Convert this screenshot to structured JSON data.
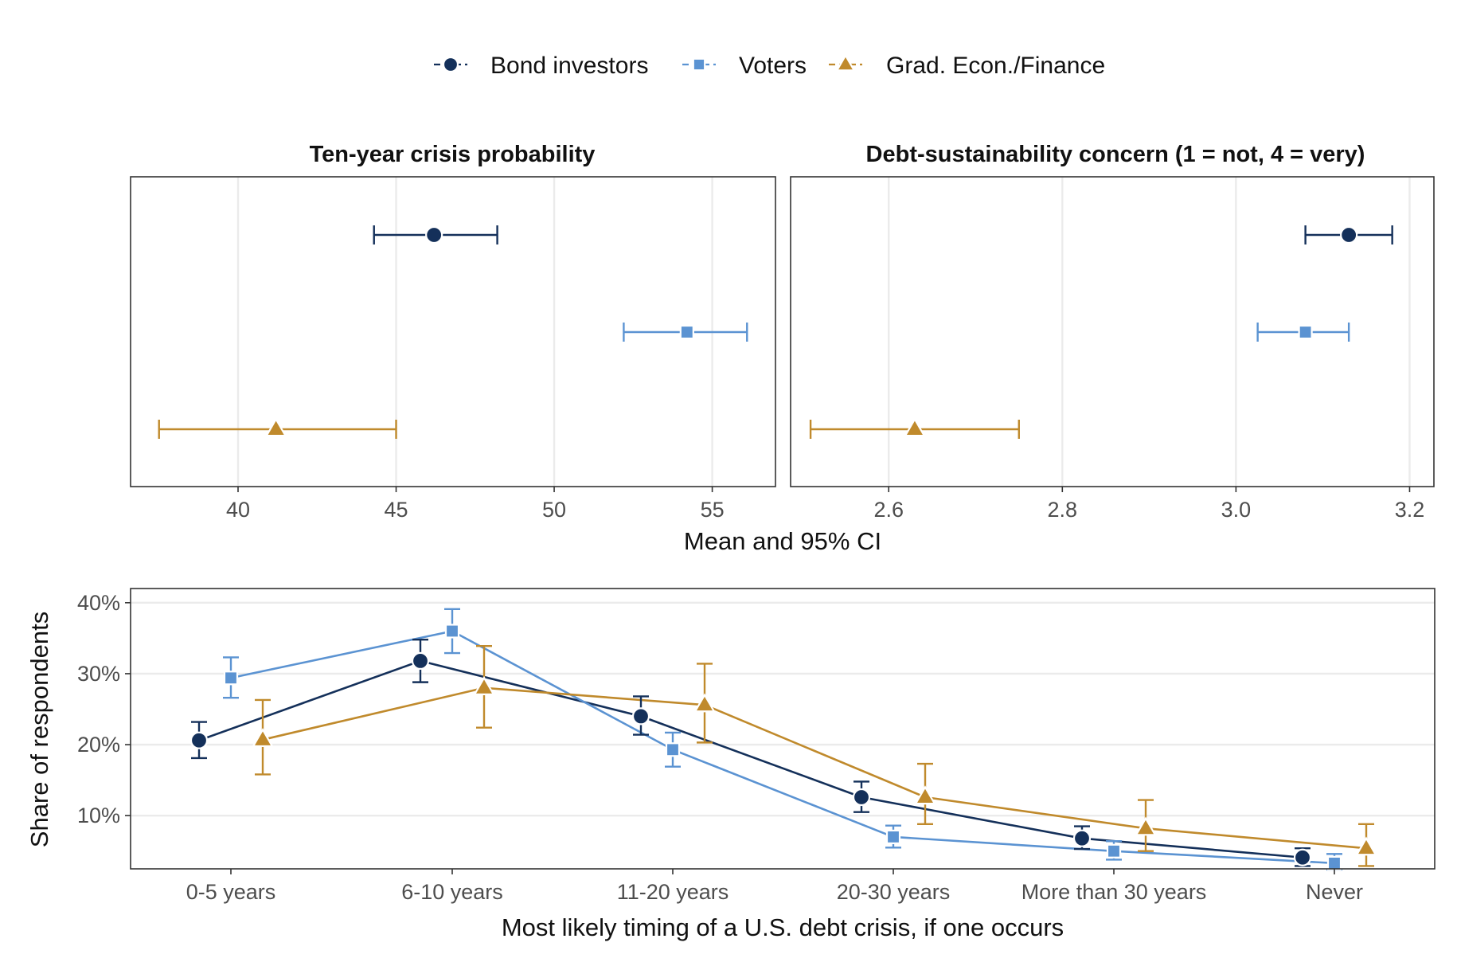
{
  "legend": {
    "items": [
      {
        "label": "Bond investors",
        "color": "#14305a",
        "marker": "circle"
      },
      {
        "label": "Voters",
        "color": "#5b93d2",
        "marker": "square"
      },
      {
        "label": "Grad. Econ./Finance",
        "color": "#c08a2c",
        "marker": "triangle"
      }
    ]
  },
  "shared_x_title": "Mean and 95% CI",
  "chart_data": [
    {
      "type": "scatter",
      "title": "Ten-year crisis probability",
      "xlabel": "Mean and 95% CI",
      "ylabel": "",
      "xlim": [
        36.6,
        57.0
      ],
      "x_ticks": [
        40,
        45,
        50,
        55
      ],
      "x_tick_labels": [
        "40",
        "45",
        "50",
        "55"
      ],
      "grid": "vertical",
      "series": [
        {
          "name": "Bond investors",
          "mean": 46.2,
          "lo": 44.3,
          "hi": 48.2
        },
        {
          "name": "Voters",
          "mean": 54.2,
          "lo": 52.2,
          "hi": 56.1
        },
        {
          "name": "Grad. Econ./Finance",
          "mean": 41.2,
          "lo": 37.5,
          "hi": 45.0
        }
      ]
    },
    {
      "type": "scatter",
      "title": "Debt-sustainability concern (1 = not, 4 = very)",
      "xlabel": "Mean and 95% CI",
      "ylabel": "",
      "xlim": [
        2.487,
        3.228
      ],
      "x_ticks": [
        2.6,
        2.8,
        3.0,
        3.2
      ],
      "x_tick_labels": [
        "2.6",
        "2.8",
        "3.0",
        "3.2"
      ],
      "grid": "vertical",
      "series": [
        {
          "name": "Bond investors",
          "mean": 3.13,
          "lo": 3.08,
          "hi": 3.18
        },
        {
          "name": "Voters",
          "mean": 3.08,
          "lo": 3.025,
          "hi": 3.13
        },
        {
          "name": "Grad. Econ./Finance",
          "mean": 2.63,
          "lo": 2.51,
          "hi": 2.75
        }
      ]
    },
    {
      "type": "line",
      "title": "",
      "xlabel": "Most likely timing of a U.S. debt crisis, if one occurs",
      "ylabel": "Share of respondents",
      "categories": [
        "0-5 years",
        "6-10 years",
        "11-20 years",
        "20-30 years",
        "More than 30 years",
        "Never"
      ],
      "ylim": [
        2.5,
        42.0
      ],
      "y_ticks": [
        10,
        20,
        30,
        40
      ],
      "y_tick_labels": [
        "10%",
        "20%",
        "30%",
        "40%"
      ],
      "grid": "horizontal",
      "series": [
        {
          "name": "Bond investors",
          "values": [
            20.6,
            31.8,
            24.0,
            12.6,
            6.8,
            4.1
          ],
          "lo": [
            18.1,
            28.8,
            21.4,
            10.5,
            5.3,
            2.9
          ],
          "hi": [
            23.2,
            34.8,
            26.8,
            14.8,
            8.5,
            5.4
          ]
        },
        {
          "name": "Voters",
          "values": [
            29.4,
            36.0,
            19.3,
            7.0,
            5.0,
            3.3
          ],
          "lo": [
            26.6,
            32.9,
            16.9,
            5.5,
            3.8,
            2.4
          ],
          "hi": [
            32.3,
            39.1,
            21.7,
            8.6,
            6.4,
            4.6
          ]
        },
        {
          "name": "Grad. Econ./Finance",
          "values": [
            20.7,
            28.0,
            25.6,
            12.6,
            8.2,
            5.4
          ],
          "lo": [
            15.8,
            22.4,
            20.3,
            8.8,
            5.0,
            2.9
          ],
          "hi": [
            26.3,
            33.9,
            31.4,
            17.3,
            12.2,
            8.8
          ]
        }
      ]
    }
  ]
}
